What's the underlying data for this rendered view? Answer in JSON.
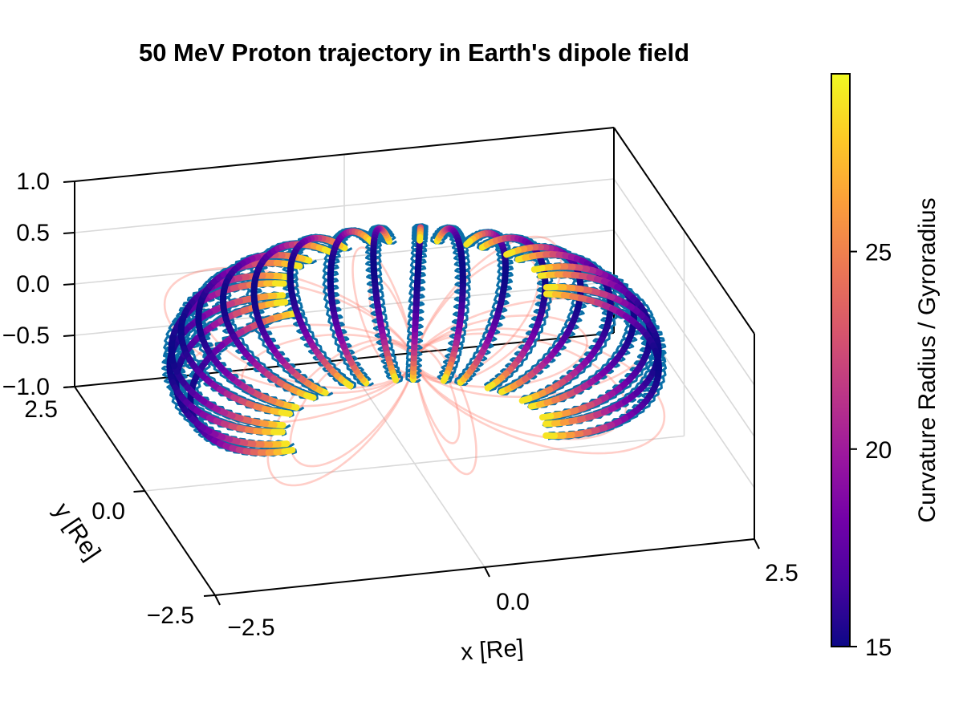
{
  "chart_data": {
    "type": "line3d",
    "title": "50 MeV Proton trajectory in Earth's dipole field",
    "xlabel": "x [Re]",
    "ylabel": "y [Re]",
    "zlabel": "",
    "xlim": [
      -2.5,
      2.5
    ],
    "ylim": [
      -2.5,
      2.5
    ],
    "zlim": [
      -1.0,
      1.0
    ],
    "x_ticks": [
      "−2.5",
      "0.0",
      "2.5"
    ],
    "y_ticks": [
      "−2.5",
      "0.0",
      "2.5"
    ],
    "z_ticks": [
      "−1.0",
      "−0.5",
      "0.0",
      "0.5",
      "1.0"
    ],
    "grid": true,
    "series": [
      {
        "name": "dipole field lines",
        "kind": "line",
        "color": "#ff7f6e",
        "L_shells": [
          1.6,
          2.2,
          2.6
        ],
        "longitudes_deg": [
          0,
          45,
          90,
          135,
          180,
          225,
          270,
          315
        ]
      },
      {
        "name": "proton trajectory",
        "kind": "line",
        "color": "#0a6fa8"
      },
      {
        "name": "guiding center",
        "kind": "line",
        "colormap": "plasma",
        "color_variable": "Curvature Radius / Gyroradius"
      }
    ],
    "colorbar": {
      "label": "Curvature Radius / Gyroradius",
      "range": [
        15,
        29.5
      ],
      "ticks": [
        "15",
        "20",
        "25"
      ],
      "tick_values": [
        15,
        20,
        25
      ],
      "colormap": "plasma",
      "colors": [
        "#0d0887",
        "#47039f",
        "#7301a8",
        "#9c179e",
        "#bd3786",
        "#d8576b",
        "#ed7953",
        "#fb9f3a",
        "#fdca26",
        "#f0f921"
      ]
    }
  }
}
